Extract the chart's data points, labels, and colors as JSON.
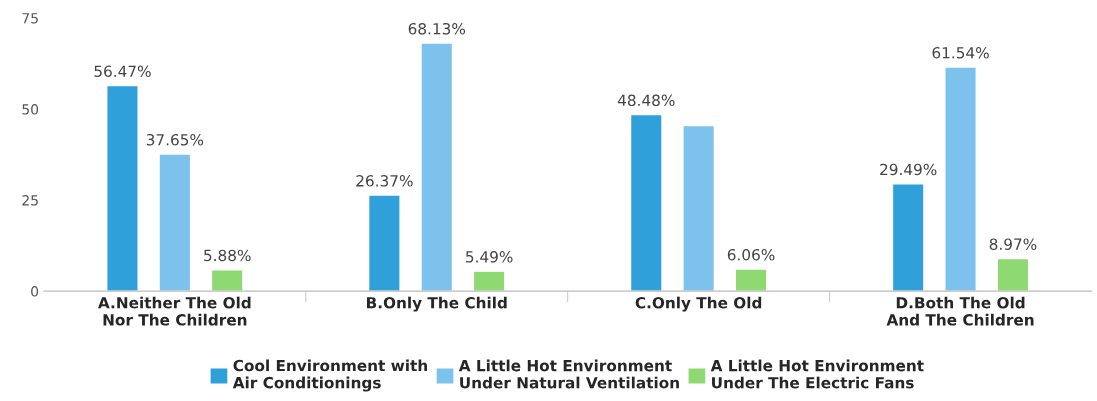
{
  "chart_data": {
    "type": "bar",
    "categories": [
      "A.Neither The Old\nNor The Children",
      "B.Only The Child",
      "C.Only The Old",
      "D.Both The Old\nAnd The Children"
    ],
    "series": [
      {
        "name": "Cool Environment with\nAir Conditionings",
        "color": "#2fa0d9",
        "values": [
          56.47,
          26.37,
          48.48,
          29.49
        ],
        "value_labels": [
          "56.47%",
          "26.37%",
          "48.48%",
          "29.49%"
        ]
      },
      {
        "name": "A Little Hot Environment\nUnder Natural Ventilation",
        "color": "#7cc2ec",
        "values": [
          37.65,
          68.13,
          45.5,
          61.54
        ],
        "value_labels": [
          "37.65%",
          "68.13%",
          null,
          "61.54%"
        ]
      },
      {
        "name": "A Little Hot Environment\nUnder The Electric Fans",
        "color": "#8fd973",
        "values": [
          5.88,
          5.49,
          6.06,
          8.97
        ],
        "value_labels": [
          "5.88%",
          "5.49%",
          "6.06%",
          "8.97%"
        ]
      }
    ],
    "ylim": [
      0,
      75
    ],
    "yticks": [
      0,
      25,
      50,
      75
    ],
    "grid": false,
    "legend": "bottom"
  }
}
